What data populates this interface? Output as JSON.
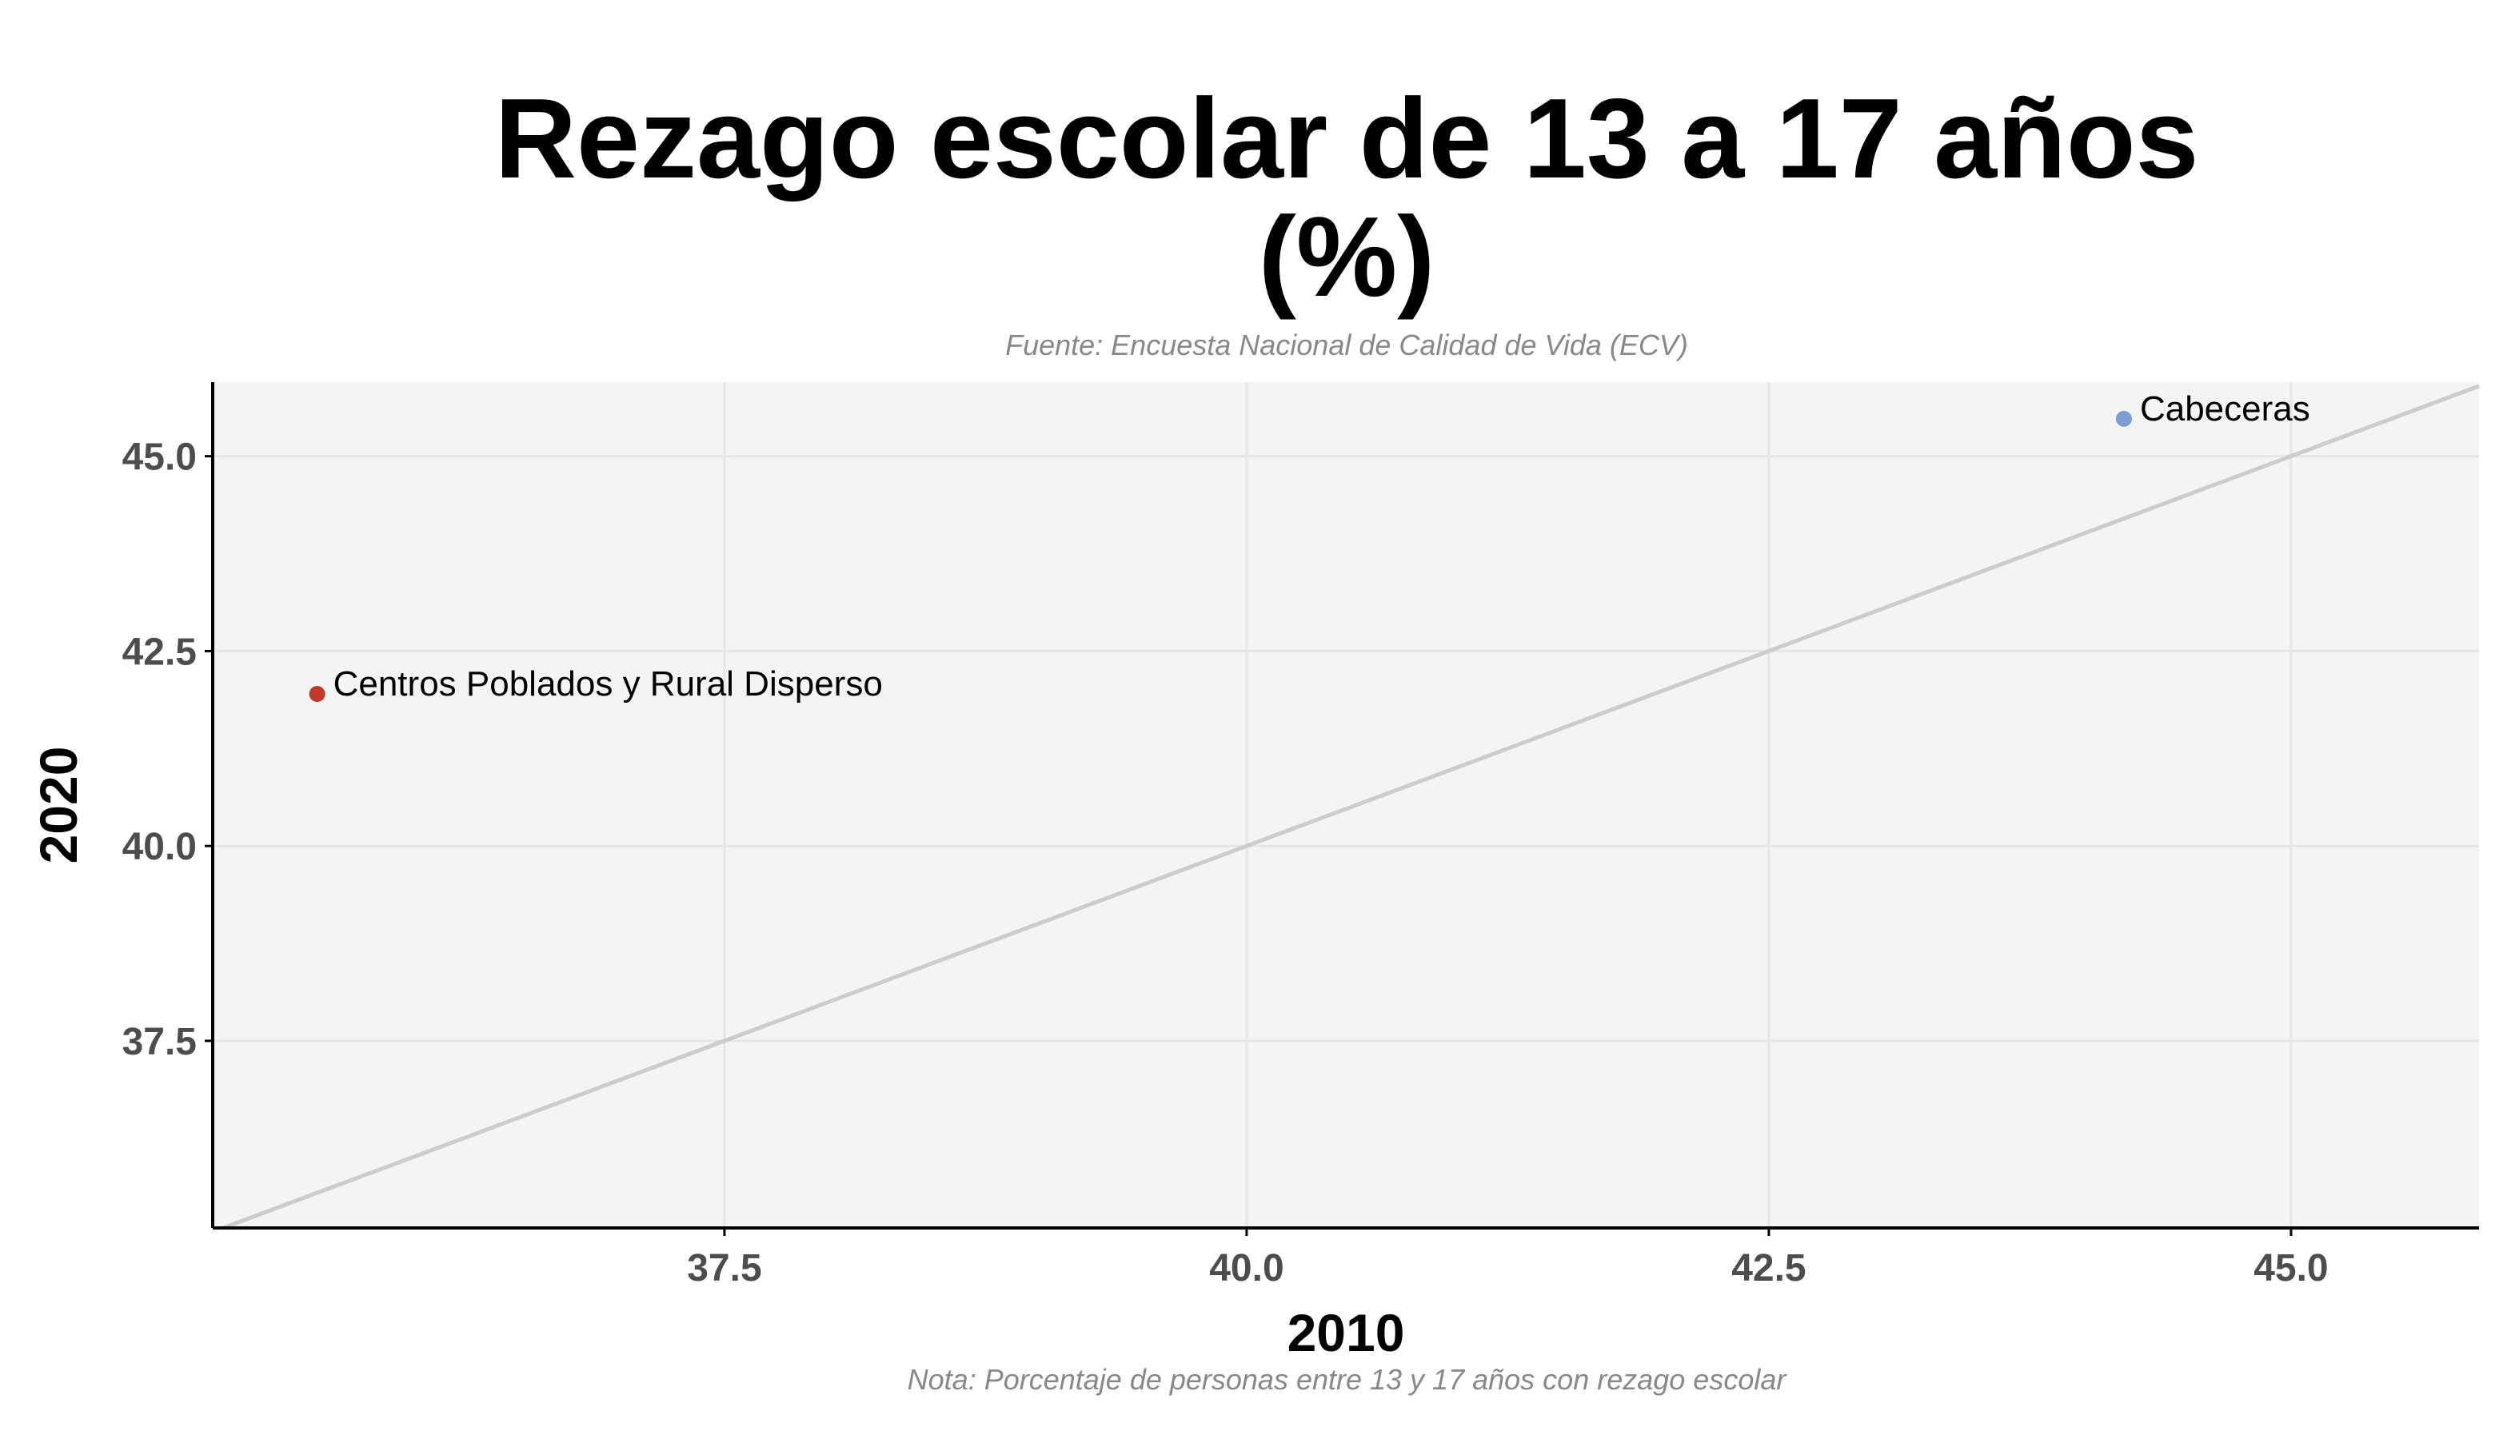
{
  "chart_data": {
    "type": "scatter",
    "title_line1": "Rezago escolar de 13 a 17 años",
    "title_line2": "(%)",
    "subtitle": "Fuente: Encuesta Nacional de Calidad de Vida (ECV)",
    "caption": "Nota: Porcentaje de personas entre 13 y 17 años con rezago escolar",
    "xlabel": "2010",
    "ylabel": "2020",
    "xlim": [
      35.05,
      45.9
    ],
    "ylim": [
      35.1,
      45.95
    ],
    "xticks": [
      "37.5",
      "40.0",
      "42.5",
      "45.0"
    ],
    "yticks": [
      "37.5",
      "40.0",
      "42.5",
      "45.0"
    ],
    "grid": true,
    "reference_line": "y = x",
    "points": [
      {
        "label": "Cabeceras",
        "x": 44.2,
        "y": 45.48,
        "color": "#7b9fd4"
      },
      {
        "label": "Centros Poblados y Rural Disperso",
        "x": 35.55,
        "y": 41.95,
        "color": "#c0392b"
      }
    ],
    "colors": {
      "panel": "#f4f4f4",
      "grid": "#e6e6e6",
      "reference_line": "#cccccc",
      "axis": "#000000",
      "tick_text": "#4d4d4d",
      "note_text": "#888888"
    }
  }
}
